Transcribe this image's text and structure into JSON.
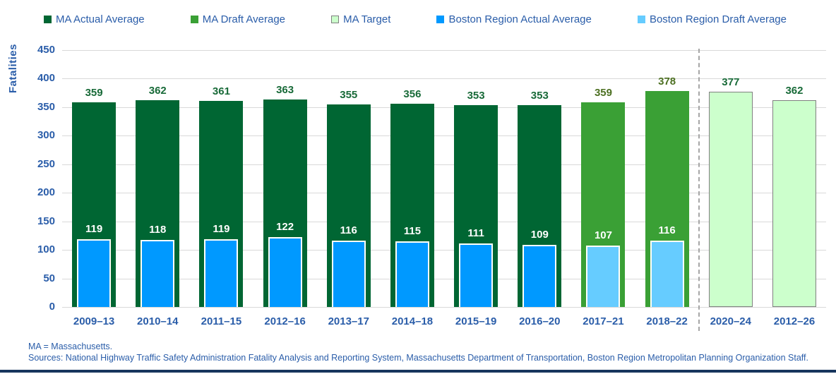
{
  "page": {
    "footnote1": "MA = Massachusetts.",
    "footnote2": "Sources: National Highway Traffic Safety Administration Fatality Analysis and Reporting System, Massachusetts Department of Transportation, Boston Region Metropolitan Planning Organization Staff."
  },
  "colors": {
    "axis_text": "#2a5da9",
    "grid": "#d9d9d9",
    "separator": "#a6a6a6",
    "bottom_bar": "#17365d",
    "inner_bar_border": "#ffffff"
  },
  "chart_data": {
    "type": "bar",
    "title": "",
    "xlabel": "",
    "ylabel": "Fatalities",
    "ylim": [
      0,
      450
    ],
    "ytick_step": 50,
    "grid": true,
    "legend_position": "top",
    "separator_after_category": "2018–22",
    "categories": [
      "2009–13",
      "2010–14",
      "2011–15",
      "2012–16",
      "2013–17",
      "2014–18",
      "2015–19",
      "2016–20",
      "2017–21",
      "2018–22",
      "2020–24",
      "2012–26"
    ],
    "series": [
      {
        "name": "MA Actual Average",
        "role": "outer",
        "color": "#006633",
        "label_color": "#186a38",
        "values": [
          359,
          362,
          361,
          363,
          355,
          356,
          353,
          353,
          null,
          null,
          null,
          null
        ]
      },
      {
        "name": "MA Draft Average",
        "role": "outer",
        "color": "#3aa035",
        "label_color": "#4d7022",
        "values": [
          null,
          null,
          null,
          null,
          null,
          null,
          null,
          null,
          359,
          378,
          null,
          null
        ]
      },
      {
        "name": "MA Target",
        "role": "outer",
        "color": "#ccffcc",
        "border": "#808080",
        "label_color": "#186a38",
        "values": [
          null,
          null,
          null,
          null,
          null,
          null,
          null,
          null,
          null,
          null,
          377,
          362
        ]
      },
      {
        "name": "Boston Region Actual Average",
        "role": "inner",
        "color": "#0099ff",
        "label_color": "#ffffff",
        "values": [
          119,
          118,
          119,
          122,
          116,
          115,
          111,
          109,
          null,
          null,
          null,
          null
        ]
      },
      {
        "name": "Boston Region Draft Average",
        "role": "inner",
        "color": "#66ccff",
        "label_color": "#ffffff",
        "values": [
          null,
          null,
          null,
          null,
          null,
          null,
          null,
          null,
          107,
          116,
          null,
          null
        ]
      }
    ]
  }
}
